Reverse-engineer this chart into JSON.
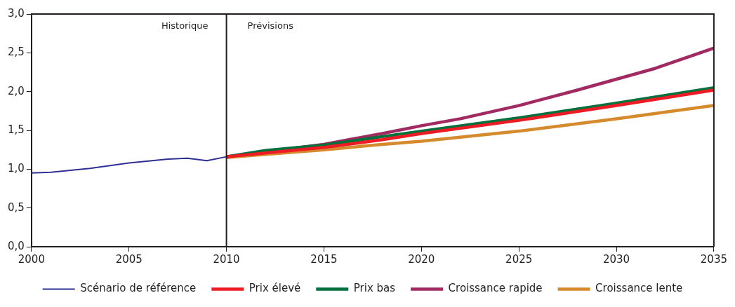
{
  "chart_data": {
    "type": "line",
    "series": [
      {
        "name": "Scénario de référence",
        "color": "#2e3192",
        "x": [
          2000,
          2001,
          2003,
          2005,
          2007,
          2008,
          2009,
          2010
        ],
        "values": [
          0.95,
          0.96,
          1.01,
          1.08,
          1.13,
          1.14,
          1.11,
          1.16
        ]
      },
      {
        "name": "Prix élevé",
        "color": "#ed1c24",
        "x": [
          2010,
          2015,
          2018,
          2020,
          2025,
          2030,
          2035
        ],
        "values": [
          1.16,
          1.28,
          1.38,
          1.46,
          1.63,
          1.82,
          2.02
        ]
      },
      {
        "name": "Prix bas",
        "color": "#00703c",
        "x": [
          2010,
          2012,
          2015,
          2018,
          2020,
          2025,
          2030,
          2035
        ],
        "values": [
          1.16,
          1.24,
          1.31,
          1.42,
          1.49,
          1.66,
          1.85,
          2.05
        ]
      },
      {
        "name": "Croissance rapide",
        "color": "#a12a63",
        "x": [
          2010,
          2015,
          2018,
          2020,
          2022,
          2025,
          2028,
          2030,
          2032,
          2035
        ],
        "values": [
          1.16,
          1.32,
          1.46,
          1.56,
          1.65,
          1.82,
          2.02,
          2.16,
          2.3,
          2.56
        ]
      },
      {
        "name": "Croissance lente",
        "color": "#d68a2e",
        "x": [
          2010,
          2012,
          2015,
          2018,
          2020,
          2025,
          2030,
          2035
        ],
        "values": [
          1.15,
          1.19,
          1.25,
          1.32,
          1.36,
          1.49,
          1.65,
          1.82
        ]
      }
    ],
    "xlim": [
      2000,
      2035
    ],
    "xticks": [
      2000,
      2005,
      2010,
      2015,
      2020,
      2025,
      2030,
      2035
    ],
    "ylim": [
      0,
      3
    ],
    "yticks": [
      {
        "value": 0,
        "label": "0,0"
      },
      {
        "value": 0.5,
        "label": "0,5"
      },
      {
        "value": 1,
        "label": "1,0"
      },
      {
        "value": 1.5,
        "label": "1,5"
      },
      {
        "value": 2,
        "label": "2,0"
      },
      {
        "value": 2.5,
        "label": "2,5"
      },
      {
        "value": 3,
        "label": "3,0"
      }
    ],
    "ref_lines": [
      {
        "axis": "x",
        "value": 2010,
        "color": "#231f20"
      }
    ],
    "annotations": [
      "Historique",
      "Prévisions"
    ],
    "grid": false,
    "legend": "bottom",
    "marker": "none",
    "line_style": "solid"
  }
}
